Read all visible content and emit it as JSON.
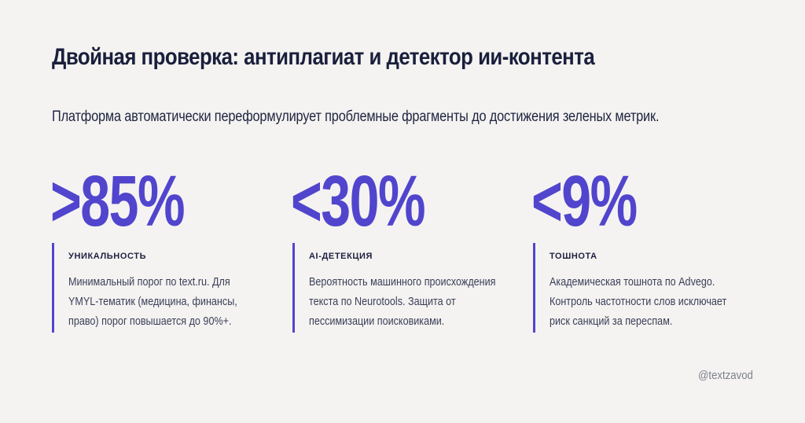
{
  "title": "Двойная проверка: антиплагиат и детектор ии-контента",
  "subtitle": "Платформа автоматически переформулирует проблемные фрагменты до достижения зеленых метрик.",
  "colors": {
    "accent": "#5145cd",
    "background": "#f4f3f1",
    "heading": "#1a1f3c"
  },
  "stats": [
    {
      "value": ">85%",
      "label": "УНИКАЛЬНОСТЬ",
      "description": "Минимальный порог по text.ru. Для\nYMYL-тематик (медицина, финансы,\nправо) порог повышается до 90%+."
    },
    {
      "value": "<30%",
      "label": "AI-ДЕТЕКЦИЯ",
      "description": "Вероятность машинного происхождения\nтекста по Neurotools. Защита от\nпессимизации поисковиками."
    },
    {
      "value": "<9%",
      "label": "ТОШНОТА",
      "description": "Академическая тошнота по Advego.\nКонтроль частотности слов исключает\nриск санкций за переспам."
    }
  ],
  "footer": {
    "handle": "@textzavod"
  }
}
